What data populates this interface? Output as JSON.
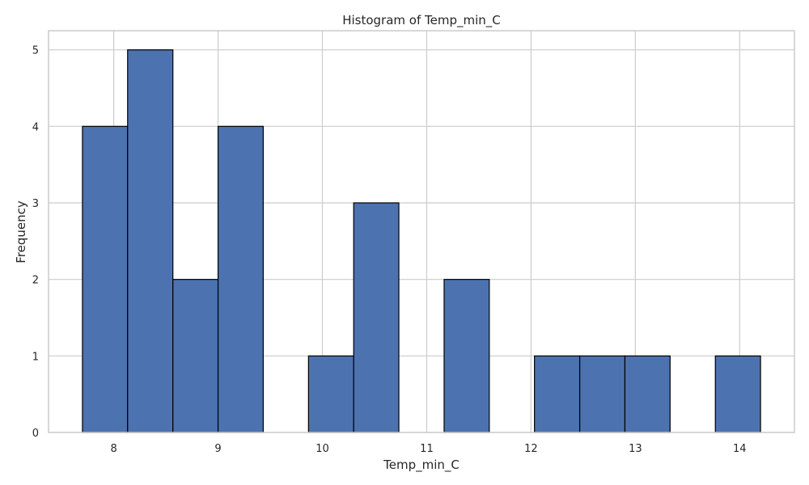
{
  "chart_data": {
    "type": "bar",
    "subtype": "histogram",
    "title": "Histogram of Temp_min_C",
    "xlabel": "Temp_min_C",
    "ylabel": "Frequency",
    "bin_edges": [
      7.7,
      8.133,
      8.567,
      9.0,
      9.433,
      9.867,
      10.3,
      10.733,
      11.167,
      11.6,
      12.033,
      12.467,
      12.9,
      13.333,
      13.767,
      14.2
    ],
    "values": [
      4,
      5,
      2,
      4,
      0,
      1,
      3,
      0,
      2,
      0,
      1,
      1,
      1,
      0,
      1
    ],
    "xlim": [
      7.375,
      14.525
    ],
    "ylim": [
      0,
      5.25
    ],
    "xticks": [
      8,
      9,
      10,
      11,
      12,
      13,
      14
    ],
    "yticks": [
      0,
      1,
      2,
      3,
      4,
      5
    ],
    "grid": true,
    "bar_color": "#4c72b0",
    "edge_color": "#000000",
    "grid_color": "#cccccc"
  }
}
